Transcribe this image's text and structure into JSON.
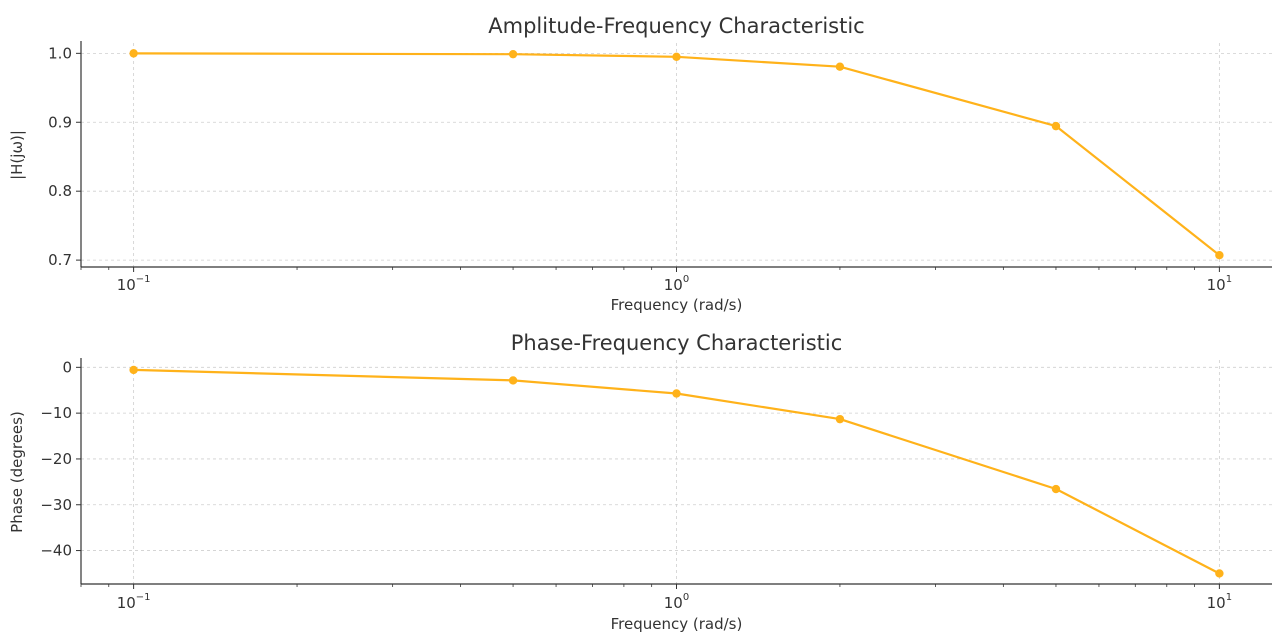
{
  "chart_data": [
    {
      "type": "line",
      "title": "Amplitude-Frequency Characteristic",
      "xlabel": "Frequency (rad/s)",
      "ylabel": "|H(jω)|",
      "xscale": "log",
      "xlim": [
        0.08,
        12.5
      ],
      "ylim": [
        0.69,
        1.015
      ],
      "xticks": [
        {
          "value": 0.1,
          "base": "10",
          "exp": "−1"
        },
        {
          "value": 1,
          "base": "10",
          "exp": "0"
        },
        {
          "value": 10,
          "base": "10",
          "exp": "1"
        }
      ],
      "yticks": [
        {
          "value": 0.7,
          "label": "0.7"
        },
        {
          "value": 0.8,
          "label": "0.8"
        },
        {
          "value": 0.9,
          "label": "0.9"
        },
        {
          "value": 1.0,
          "label": "1.0"
        }
      ],
      "grid": true,
      "color": "#ffb21a",
      "x": [
        0.1,
        0.5,
        1,
        2,
        5,
        10
      ],
      "y": [
        0.99995,
        0.9988,
        0.995,
        0.9806,
        0.8944,
        0.7071
      ]
    },
    {
      "type": "line",
      "title": "Phase-Frequency Characteristic",
      "xlabel": "Frequency (rad/s)",
      "ylabel": "Phase (degrees)",
      "xscale": "log",
      "xlim": [
        0.08,
        12.5
      ],
      "ylim": [
        -47.3,
        1.6
      ],
      "xticks": [
        {
          "value": 0.1,
          "base": "10",
          "exp": "−1"
        },
        {
          "value": 1,
          "base": "10",
          "exp": "0"
        },
        {
          "value": 10,
          "base": "10",
          "exp": "1"
        }
      ],
      "yticks": [
        {
          "value": 0,
          "label": "0"
        },
        {
          "value": -10,
          "label": "−10"
        },
        {
          "value": -20,
          "label": "−20"
        },
        {
          "value": -30,
          "label": "−30"
        },
        {
          "value": -40,
          "label": "−40"
        }
      ],
      "grid": true,
      "color": "#ffb21a",
      "x": [
        0.1,
        0.5,
        1,
        2,
        5,
        10
      ],
      "y": [
        -0.57,
        -2.86,
        -5.71,
        -11.31,
        -26.57,
        -45.0
      ]
    }
  ]
}
